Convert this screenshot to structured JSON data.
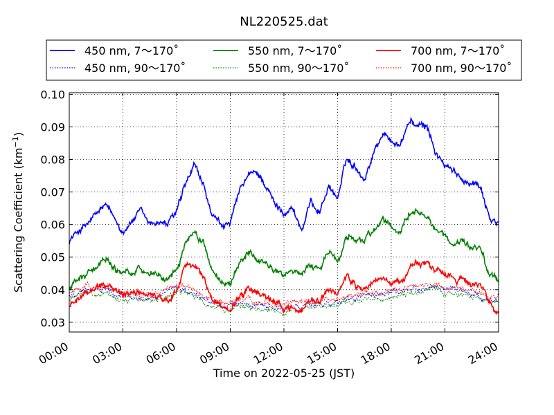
{
  "chart_data": {
    "type": "line",
    "title": "NL220525.dat",
    "xlabel": "Time on 2022-05-25 (JST)",
    "ylabel_main": "Scattering Coefficient (km",
    "ylabel_sup": "−1",
    "ylabel_close": ")",
    "xlim": [
      0,
      24
    ],
    "ylim": [
      0.027,
      0.1005
    ],
    "grid": true,
    "legend_placement": "top",
    "x_ticks": [
      {
        "value": 0,
        "label": "00:00"
      },
      {
        "value": 3,
        "label": "03:00"
      },
      {
        "value": 6,
        "label": "06:00"
      },
      {
        "value": 9,
        "label": "09:00"
      },
      {
        "value": 12,
        "label": "12:00"
      },
      {
        "value": 15,
        "label": "15:00"
      },
      {
        "value": 18,
        "label": "18:00"
      },
      {
        "value": 21,
        "label": "21:00"
      },
      {
        "value": 24,
        "label": "24:00"
      }
    ],
    "y_ticks": [
      {
        "value": 0.03,
        "label": "0.03"
      },
      {
        "value": 0.04,
        "label": "0.04"
      },
      {
        "value": 0.05,
        "label": "0.05"
      },
      {
        "value": 0.06,
        "label": "0.06"
      },
      {
        "value": 0.07,
        "label": "0.07"
      },
      {
        "value": 0.08,
        "label": "0.08"
      },
      {
        "value": 0.09,
        "label": "0.09"
      },
      {
        "value": 0.1,
        "label": "0.10"
      }
    ],
    "x": [
      0,
      0.5,
      1,
      1.5,
      2,
      2.5,
      3,
      3.5,
      4,
      4.5,
      5,
      5.5,
      6,
      6.5,
      7,
      7.5,
      8,
      8.5,
      9,
      9.5,
      10,
      10.5,
      11,
      11.5,
      12,
      12.5,
      13,
      13.5,
      14,
      14.5,
      15,
      15.5,
      16,
      16.5,
      17,
      17.5,
      18,
      18.5,
      19,
      19.5,
      20,
      20.5,
      21,
      21.5,
      22,
      22.5,
      23,
      23.5,
      24
    ],
    "series": [
      {
        "name": "450 nm, 7～170˚",
        "color": "#0000ff",
        "style": "solid",
        "values": [
          0.055,
          0.058,
          0.06,
          0.063,
          0.066,
          0.062,
          0.058,
          0.061,
          0.064,
          0.06,
          0.061,
          0.06,
          0.064,
          0.072,
          0.078,
          0.072,
          0.062,
          0.06,
          0.06,
          0.07,
          0.075,
          0.076,
          0.072,
          0.066,
          0.064,
          0.065,
          0.058,
          0.067,
          0.064,
          0.072,
          0.068,
          0.08,
          0.078,
          0.074,
          0.082,
          0.088,
          0.086,
          0.084,
          0.092,
          0.09,
          0.09,
          0.082,
          0.078,
          0.076,
          0.074,
          0.073,
          0.072,
          0.062,
          0.06
        ]
      },
      {
        "name": "450 nm, 90～170˚",
        "color": "#0000ff",
        "style": "dotted",
        "values": [
          0.038,
          0.039,
          0.04,
          0.04,
          0.04,
          0.039,
          0.038,
          0.038,
          0.037,
          0.038,
          0.038,
          0.039,
          0.04,
          0.04,
          0.039,
          0.037,
          0.036,
          0.035,
          0.035,
          0.036,
          0.036,
          0.035,
          0.035,
          0.034,
          0.034,
          0.035,
          0.035,
          0.035,
          0.036,
          0.036,
          0.036,
          0.037,
          0.037,
          0.038,
          0.038,
          0.038,
          0.039,
          0.039,
          0.04,
          0.04,
          0.041,
          0.041,
          0.04,
          0.04,
          0.039,
          0.039,
          0.038,
          0.037,
          0.037
        ]
      },
      {
        "name": "550 nm, 7～170˚",
        "color": "#008000",
        "style": "solid",
        "values": [
          0.04,
          0.043,
          0.045,
          0.047,
          0.05,
          0.047,
          0.044,
          0.046,
          0.047,
          0.045,
          0.044,
          0.043,
          0.046,
          0.054,
          0.058,
          0.054,
          0.046,
          0.043,
          0.042,
          0.048,
          0.051,
          0.05,
          0.048,
          0.046,
          0.045,
          0.045,
          0.044,
          0.048,
          0.046,
          0.051,
          0.048,
          0.057,
          0.055,
          0.055,
          0.058,
          0.061,
          0.059,
          0.058,
          0.063,
          0.064,
          0.062,
          0.058,
          0.056,
          0.054,
          0.054,
          0.053,
          0.052,
          0.045,
          0.042
        ]
      },
      {
        "name": "550 nm, 90～170˚",
        "color": "#008000",
        "style": "dotted",
        "values": [
          0.037,
          0.038,
          0.039,
          0.039,
          0.039,
          0.038,
          0.037,
          0.037,
          0.036,
          0.037,
          0.037,
          0.038,
          0.039,
          0.039,
          0.038,
          0.036,
          0.035,
          0.034,
          0.034,
          0.035,
          0.035,
          0.034,
          0.034,
          0.033,
          0.033,
          0.034,
          0.034,
          0.034,
          0.035,
          0.035,
          0.035,
          0.036,
          0.036,
          0.037,
          0.037,
          0.037,
          0.038,
          0.038,
          0.039,
          0.039,
          0.04,
          0.04,
          0.039,
          0.039,
          0.038,
          0.038,
          0.037,
          0.036,
          0.036
        ]
      },
      {
        "name": "700 nm, 7～170˚",
        "color": "#ff0000",
        "style": "solid",
        "values": [
          0.035,
          0.037,
          0.039,
          0.04,
          0.042,
          0.04,
          0.038,
          0.039,
          0.039,
          0.038,
          0.037,
          0.037,
          0.04,
          0.047,
          0.048,
          0.044,
          0.037,
          0.035,
          0.034,
          0.038,
          0.04,
          0.039,
          0.037,
          0.036,
          0.035,
          0.034,
          0.034,
          0.037,
          0.036,
          0.04,
          0.039,
          0.044,
          0.041,
          0.04,
          0.042,
          0.043,
          0.042,
          0.042,
          0.046,
          0.048,
          0.048,
          0.045,
          0.045,
          0.043,
          0.043,
          0.042,
          0.041,
          0.036,
          0.033
        ]
      },
      {
        "name": "700 nm, 90～170˚",
        "color": "#ff0000",
        "style": "dotted",
        "values": [
          0.039,
          0.04,
          0.041,
          0.041,
          0.041,
          0.04,
          0.039,
          0.039,
          0.038,
          0.039,
          0.039,
          0.04,
          0.041,
          0.041,
          0.04,
          0.038,
          0.037,
          0.036,
          0.036,
          0.037,
          0.037,
          0.036,
          0.036,
          0.035,
          0.035,
          0.036,
          0.036,
          0.036,
          0.037,
          0.037,
          0.037,
          0.038,
          0.038,
          0.039,
          0.039,
          0.039,
          0.04,
          0.04,
          0.041,
          0.041,
          0.042,
          0.042,
          0.041,
          0.041,
          0.04,
          0.04,
          0.039,
          0.038,
          0.038
        ]
      }
    ]
  }
}
